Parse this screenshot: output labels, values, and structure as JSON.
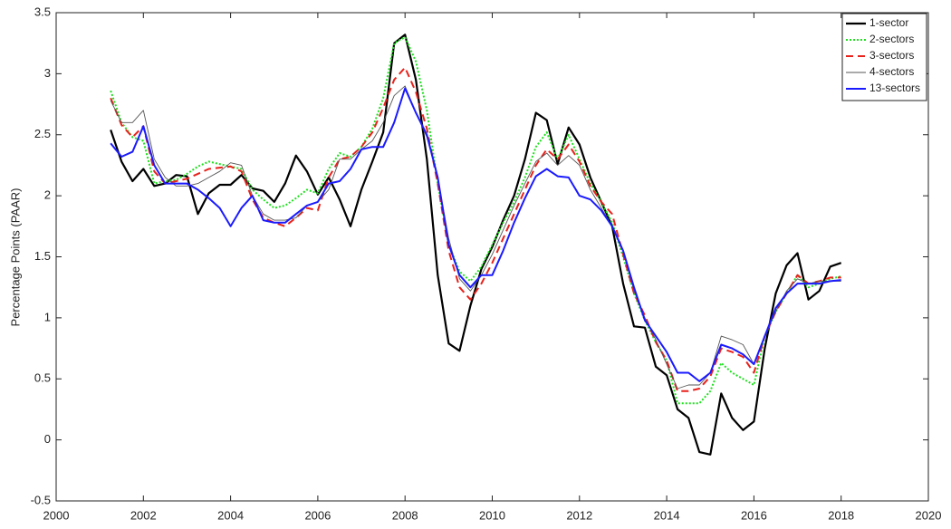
{
  "chart_data": {
    "type": "line",
    "y_label": "Percentage Points (PAAR)",
    "xlim": [
      2000,
      2020
    ],
    "xticks": [
      2000,
      2002,
      2004,
      2006,
      2008,
      2010,
      2012,
      2014,
      2016,
      2018,
      2020
    ],
    "ylim": [
      -0.5,
      3.5
    ],
    "yticks": [
      -0.5,
      0,
      0.5,
      1,
      1.5,
      2,
      2.5,
      3,
      3.5
    ],
    "grid": false,
    "legend": "upper right",
    "x": [
      2001.25,
      2001.5,
      2001.75,
      2002,
      2002.25,
      2002.5,
      2002.75,
      2003,
      2003.25,
      2003.5,
      2003.75,
      2004,
      2004.25,
      2004.5,
      2004.75,
      2005,
      2005.25,
      2005.5,
      2005.75,
      2006,
      2006.25,
      2006.5,
      2006.75,
      2007,
      2007.25,
      2007.5,
      2007.75,
      2008,
      2008.25,
      2008.5,
      2008.75,
      2009,
      2009.25,
      2009.5,
      2009.75,
      2010,
      2010.25,
      2010.5,
      2010.75,
      2011,
      2011.25,
      2011.5,
      2011.75,
      2012,
      2012.25,
      2012.5,
      2012.75,
      2013,
      2013.25,
      2013.5,
      2013.75,
      2014,
      2014.25,
      2014.5,
      2014.75,
      2015,
      2015.25,
      2015.5,
      2015.75,
      2016,
      2016.25,
      2016.5,
      2016.75,
      2017,
      2017.25,
      2017.5,
      2017.75,
      2018
    ],
    "series": [
      {
        "name": "1-sector",
        "color": "#000000",
        "linestyle": "solid",
        "values": [
          2.54,
          2.28,
          2.12,
          2.22,
          2.08,
          2.1,
          2.17,
          2.16,
          1.85,
          2.02,
          2.09,
          2.09,
          2.17,
          2.06,
          2.04,
          1.95,
          2.1,
          2.33,
          2.2,
          2.01,
          2.15,
          1.97,
          1.75,
          2.05,
          2.28,
          2.52,
          3.25,
          3.32,
          2.95,
          2.3,
          1.35,
          0.79,
          0.73,
          1.1,
          1.4,
          1.58,
          1.8,
          2.0,
          2.3,
          2.68,
          2.62,
          2.26,
          2.56,
          2.42,
          2.15,
          1.95,
          1.75,
          1.28,
          0.93,
          0.92,
          0.6,
          0.53,
          0.25,
          0.18,
          -0.1,
          -0.12,
          0.38,
          0.18,
          0.08,
          0.15,
          0.75,
          1.2,
          1.43,
          1.53,
          1.15,
          1.22,
          1.42,
          1.45
        ]
      },
      {
        "name": "2-sectors",
        "color": "#1fe01f",
        "linestyle": "dotted",
        "values": [
          2.86,
          2.6,
          2.48,
          2.45,
          2.1,
          2.12,
          2.13,
          2.18,
          2.24,
          2.28,
          2.26,
          2.24,
          2.22,
          2.05,
          1.97,
          1.9,
          1.92,
          1.98,
          2.05,
          2.02,
          2.22,
          2.35,
          2.32,
          2.4,
          2.55,
          2.8,
          3.25,
          3.3,
          3.1,
          2.7,
          2.1,
          1.6,
          1.38,
          1.3,
          1.42,
          1.6,
          1.78,
          1.95,
          2.15,
          2.4,
          2.52,
          2.3,
          2.5,
          2.3,
          2.1,
          1.95,
          1.78,
          1.5,
          1.2,
          0.98,
          0.8,
          0.65,
          0.3,
          0.3,
          0.3,
          0.4,
          0.63,
          0.55,
          0.5,
          0.45,
          0.85,
          1.05,
          1.2,
          1.35,
          1.25,
          1.28,
          1.32,
          1.34
        ]
      },
      {
        "name": "3-sectors",
        "color": "#e8221c",
        "linestyle": "dashed",
        "values": [
          2.8,
          2.58,
          2.48,
          2.57,
          2.2,
          2.1,
          2.12,
          2.14,
          2.18,
          2.22,
          2.23,
          2.24,
          2.2,
          1.97,
          1.82,
          1.78,
          1.75,
          1.82,
          1.9,
          1.88,
          2.15,
          2.3,
          2.32,
          2.4,
          2.52,
          2.72,
          2.95,
          3.05,
          2.85,
          2.55,
          2.1,
          1.55,
          1.25,
          1.15,
          1.28,
          1.45,
          1.65,
          1.85,
          2.05,
          2.25,
          2.38,
          2.3,
          2.42,
          2.28,
          2.08,
          1.95,
          1.85,
          1.52,
          1.2,
          1.02,
          0.8,
          0.65,
          0.4,
          0.4,
          0.42,
          0.52,
          0.75,
          0.72,
          0.68,
          0.55,
          0.85,
          1.05,
          1.2,
          1.35,
          1.28,
          1.3,
          1.33,
          1.33
        ]
      },
      {
        "name": "4-sectors",
        "color": "#555555",
        "linestyle": "solid",
        "values": [
          2.78,
          2.6,
          2.6,
          2.7,
          2.3,
          2.15,
          2.08,
          2.08,
          2.1,
          2.15,
          2.2,
          2.27,
          2.25,
          2.0,
          1.85,
          1.8,
          1.8,
          1.82,
          1.92,
          1.95,
          2.05,
          2.3,
          2.3,
          2.38,
          2.45,
          2.6,
          2.82,
          2.9,
          2.68,
          2.48,
          2.15,
          1.65,
          1.32,
          1.22,
          1.35,
          1.52,
          1.72,
          1.92,
          2.1,
          2.28,
          2.35,
          2.25,
          2.33,
          2.25,
          2.05,
          1.9,
          1.75,
          1.55,
          1.22,
          1.0,
          0.82,
          0.62,
          0.42,
          0.45,
          0.45,
          0.55,
          0.85,
          0.82,
          0.78,
          0.62,
          0.85,
          1.05,
          1.22,
          1.32,
          1.28,
          1.3,
          1.3,
          1.3
        ]
      },
      {
        "name": "13-sectors",
        "color": "#1a1aff",
        "linestyle": "solid",
        "values": [
          2.43,
          2.32,
          2.36,
          2.57,
          2.25,
          2.1,
          2.1,
          2.1,
          2.05,
          1.98,
          1.9,
          1.75,
          1.9,
          2.0,
          1.8,
          1.78,
          1.78,
          1.85,
          1.92,
          1.95,
          2.1,
          2.12,
          2.22,
          2.38,
          2.4,
          2.4,
          2.6,
          2.88,
          2.68,
          2.5,
          2.15,
          1.6,
          1.35,
          1.25,
          1.35,
          1.35,
          1.55,
          1.78,
          1.98,
          2.16,
          2.22,
          2.16,
          2.15,
          2.0,
          1.97,
          1.88,
          1.75,
          1.55,
          1.25,
          0.98,
          0.85,
          0.72,
          0.55,
          0.55,
          0.48,
          0.55,
          0.78,
          0.75,
          0.7,
          0.62,
          0.85,
          1.08,
          1.2,
          1.28,
          1.28,
          1.28,
          1.3,
          1.31
        ]
      }
    ]
  }
}
